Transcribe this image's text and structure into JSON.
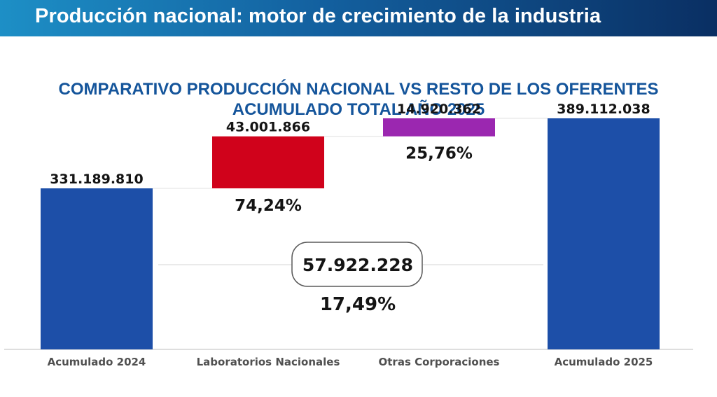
{
  "header": {
    "title": "Producción nacional: motor de crecimiento de la industria",
    "colors": {
      "start": "#1d8fc6",
      "end": "#0a2f63"
    }
  },
  "chart_data": {
    "type": "waterfall",
    "title": "COMPARATIVO PRODUCCIÓN NACIONAL VS RESTO DE LOS OFERENTES",
    "subtitle": "ACUMULADO TOTAL AÑO 2025",
    "categories": [
      "Acumulado 2024",
      "Laboratorios Nacionales",
      "Otras Corporaciones",
      "Acumulado 2025"
    ],
    "bars": [
      {
        "category": "Acumulado 2024",
        "kind": "total",
        "value": 331189810,
        "label": "331.189.810",
        "color": "#1d4fa8"
      },
      {
        "category": "Laboratorios Nacionales",
        "kind": "increment",
        "base": 331189810,
        "value": 43001866,
        "label": "43.001.866",
        "share_label": "74,24%",
        "color": "#d0021b"
      },
      {
        "category": "Otras Corporaciones",
        "kind": "increment",
        "base": 374191676,
        "value": 14920362,
        "label": "14.920.362",
        "share_label": "25,76%",
        "color": "#9b27b0"
      },
      {
        "category": "Acumulado 2025",
        "kind": "total",
        "value": 389112038,
        "label": "389.112.038",
        "color": "#1d4fa8"
      }
    ],
    "difference": {
      "value": 57922228,
      "label": "57.922.228",
      "percent_label": "17,49%"
    },
    "ylim": [
      0,
      389112038
    ]
  }
}
